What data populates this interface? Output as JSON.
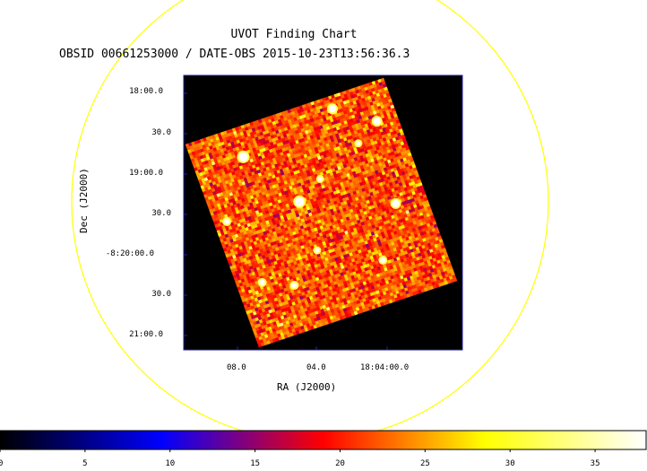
{
  "header": {
    "title": "UVOT Finding Chart",
    "subtitle": "OBSID 00661253000 / DATE-OBS 2015-10-23T13:56:36.3"
  },
  "axes": {
    "ylabel": "Dec (J2000)",
    "xlabel": "RA (J2000)",
    "yticks": [
      "18:00.0",
      "30.0",
      "19:00.0",
      "30.0",
      "-8:20:00.0",
      "30.0",
      "21:00.0"
    ],
    "xticks": [
      "08.0",
      "04.0",
      "18:04:00.0"
    ]
  },
  "colors": {
    "circle": "#ffff00",
    "frame": "#2222aa",
    "background": "#000000"
  },
  "chart_data": {
    "type": "heatmap",
    "title": "UVOT Finding Chart",
    "subtitle": "OBSID 00661253000 / DATE-OBS 2015-10-23T13:56:36.3",
    "xlabel": "RA (J2000)",
    "ylabel": "Dec (J2000)",
    "x_tick_labels": [
      "08.0",
      "04.0",
      "18:04:00.0"
    ],
    "y_tick_labels": [
      "18:00.0",
      "30.0",
      "19:00.0",
      "30.0",
      "-8:20:00.0",
      "30.0",
      "21:00.0"
    ],
    "colorbar": {
      "range": [
        0,
        38
      ],
      "ticks": [
        0,
        5,
        10,
        15,
        20,
        25,
        30,
        35
      ],
      "colormap": "heat",
      "stops": [
        "#000000",
        "#0000ff",
        "#ff0000",
        "#ffff00",
        "#ffffff"
      ]
    },
    "image_value_range": [
      15,
      38
    ],
    "typical_pixel_value": 22,
    "point_sources": 12
  }
}
